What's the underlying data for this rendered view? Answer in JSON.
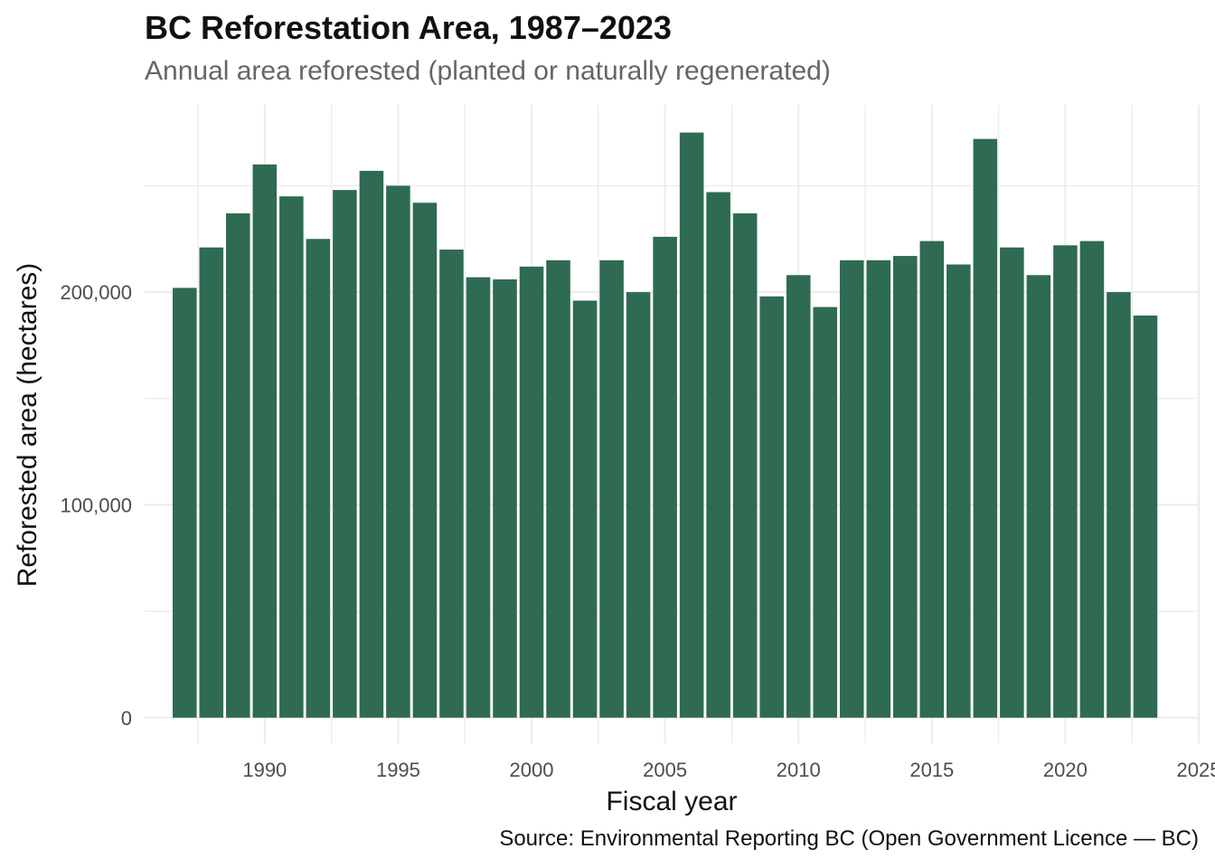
{
  "chart_data": {
    "type": "bar",
    "title": "BC Reforestation Area, 1987–2023",
    "subtitle": "Annual area reforested (planted or naturally regenerated)",
    "caption": "Source: Environmental Reporting BC (Open Government Licence — BC)",
    "xlabel": "Fiscal year",
    "ylabel": "Reforested area (hectares)",
    "x": [
      1987,
      1988,
      1989,
      1990,
      1991,
      1992,
      1993,
      1994,
      1995,
      1996,
      1997,
      1998,
      1999,
      2000,
      2001,
      2002,
      2003,
      2004,
      2005,
      2006,
      2007,
      2008,
      2009,
      2010,
      2011,
      2012,
      2013,
      2014,
      2015,
      2016,
      2017,
      2018,
      2019,
      2020,
      2021,
      2022,
      2023
    ],
    "values": [
      202000,
      221000,
      237000,
      260000,
      245000,
      225000,
      248000,
      257000,
      250000,
      242000,
      220000,
      207000,
      206000,
      212000,
      215000,
      196000,
      215000,
      200000,
      226000,
      275000,
      247000,
      237000,
      198000,
      208000,
      193000,
      215000,
      215000,
      217000,
      224000,
      213000,
      272000,
      221000,
      208000,
      222000,
      224000,
      200000,
      189000
    ],
    "xlim": [
      1985.5,
      2025
    ],
    "ylim": [
      -12000,
      288000
    ],
    "x_ticks": [
      1990,
      1995,
      2000,
      2005,
      2010,
      2015,
      2020,
      2025
    ],
    "y_ticks": [
      0,
      100000,
      200000
    ],
    "y_tick_labels": [
      "0",
      "100,000",
      "200,000"
    ],
    "grid": true,
    "bar_color": "#2e6b52",
    "grid_color": "#ebebeb"
  }
}
